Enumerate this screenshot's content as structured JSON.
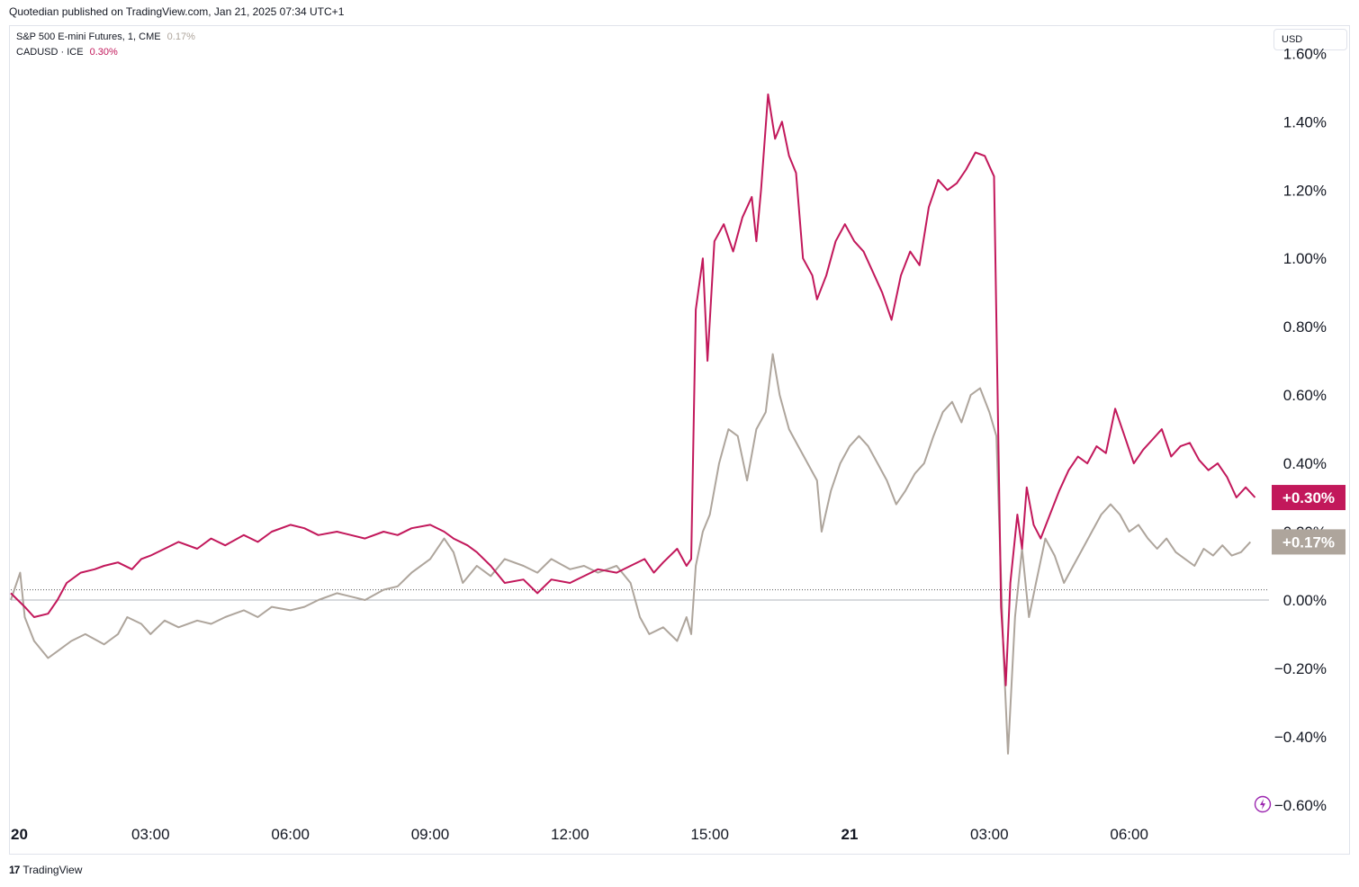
{
  "header": {
    "published": "Quotedian published on TradingView.com, Jan 21, 2025 07:34 UTC+1"
  },
  "legend": [
    {
      "name": "S&P 500 E-mini Futures, 1, CME",
      "pct": "0.17%",
      "color": "#aea59c"
    },
    {
      "name": "CADUSD · ICE",
      "pct": "0.30%",
      "color": "#c2185b"
    }
  ],
  "currency_button": "USD",
  "footer": {
    "brand": "TradingView"
  },
  "chart_data": {
    "type": "line",
    "ylim": [
      -0.64,
      1.68
    ],
    "y_ticks": [
      1.6,
      1.4,
      1.2,
      1.0,
      0.8,
      0.6,
      0.4,
      0.2,
      0.0,
      -0.2,
      -0.4,
      -0.6
    ],
    "y_tick_labels": [
      "1.60%",
      "1.40%",
      "1.20%",
      "1.00%",
      "0.80%",
      "0.60%",
      "0.40%",
      "0.20%",
      "0.00%",
      "−0.20%",
      "−0.40%",
      "−0.60%"
    ],
    "x_range": [
      0,
      27.0
    ],
    "x_ticks": [
      0,
      3,
      6,
      9,
      12,
      15,
      18,
      21,
      24,
      27
    ],
    "x_tick_labels": [
      "20",
      "03:00",
      "06:00",
      "09:00",
      "12:00",
      "15:00",
      "21",
      "03:00",
      "06:00",
      ""
    ],
    "x_tick_bold": [
      "20",
      "21"
    ],
    "grid": false,
    "zero_line": 0.0,
    "reference_line": 0.03,
    "series": [
      {
        "name": "CADUSD · ICE",
        "color": "#c2185b",
        "last_label": "+0.30%",
        "points": [
          [
            0.0,
            0.02
          ],
          [
            0.3,
            -0.02
          ],
          [
            0.5,
            -0.05
          ],
          [
            0.8,
            -0.04
          ],
          [
            1.0,
            0.0
          ],
          [
            1.2,
            0.05
          ],
          [
            1.5,
            0.08
          ],
          [
            1.8,
            0.09
          ],
          [
            2.0,
            0.1
          ],
          [
            2.3,
            0.11
          ],
          [
            2.6,
            0.09
          ],
          [
            2.8,
            0.12
          ],
          [
            3.0,
            0.13
          ],
          [
            3.3,
            0.15
          ],
          [
            3.6,
            0.17
          ],
          [
            4.0,
            0.15
          ],
          [
            4.3,
            0.18
          ],
          [
            4.6,
            0.16
          ],
          [
            5.0,
            0.19
          ],
          [
            5.3,
            0.17
          ],
          [
            5.6,
            0.2
          ],
          [
            6.0,
            0.22
          ],
          [
            6.3,
            0.21
          ],
          [
            6.6,
            0.19
          ],
          [
            7.0,
            0.2
          ],
          [
            7.3,
            0.19
          ],
          [
            7.6,
            0.18
          ],
          [
            8.0,
            0.2
          ],
          [
            8.3,
            0.19
          ],
          [
            8.6,
            0.21
          ],
          [
            9.0,
            0.22
          ],
          [
            9.3,
            0.2
          ],
          [
            9.5,
            0.18
          ],
          [
            9.8,
            0.16
          ],
          [
            10.0,
            0.14
          ],
          [
            10.3,
            0.1
          ],
          [
            10.6,
            0.05
          ],
          [
            11.0,
            0.06
          ],
          [
            11.3,
            0.02
          ],
          [
            11.6,
            0.06
          ],
          [
            12.0,
            0.05
          ],
          [
            12.3,
            0.07
          ],
          [
            12.6,
            0.09
          ],
          [
            13.0,
            0.08
          ],
          [
            13.3,
            0.1
          ],
          [
            13.6,
            0.12
          ],
          [
            13.8,
            0.08
          ],
          [
            14.0,
            0.11
          ],
          [
            14.3,
            0.15
          ],
          [
            14.5,
            0.1
          ],
          [
            14.6,
            0.12
          ],
          [
            14.7,
            0.85
          ],
          [
            14.85,
            1.0
          ],
          [
            14.95,
            0.7
          ],
          [
            15.1,
            1.05
          ],
          [
            15.3,
            1.1
          ],
          [
            15.5,
            1.02
          ],
          [
            15.7,
            1.12
          ],
          [
            15.9,
            1.18
          ],
          [
            16.0,
            1.05
          ],
          [
            16.1,
            1.2
          ],
          [
            16.25,
            1.48
          ],
          [
            16.4,
            1.35
          ],
          [
            16.55,
            1.4
          ],
          [
            16.7,
            1.3
          ],
          [
            16.85,
            1.25
          ],
          [
            17.0,
            1.0
          ],
          [
            17.2,
            0.95
          ],
          [
            17.3,
            0.88
          ],
          [
            17.5,
            0.95
          ],
          [
            17.7,
            1.05
          ],
          [
            17.9,
            1.1
          ],
          [
            18.1,
            1.05
          ],
          [
            18.3,
            1.02
          ],
          [
            18.5,
            0.96
          ],
          [
            18.7,
            0.9
          ],
          [
            18.9,
            0.82
          ],
          [
            19.1,
            0.95
          ],
          [
            19.3,
            1.02
          ],
          [
            19.5,
            0.98
          ],
          [
            19.7,
            1.15
          ],
          [
            19.9,
            1.23
          ],
          [
            20.1,
            1.2
          ],
          [
            20.3,
            1.22
          ],
          [
            20.5,
            1.26
          ],
          [
            20.7,
            1.31
          ],
          [
            20.9,
            1.3
          ],
          [
            21.0,
            1.27
          ],
          [
            21.1,
            1.24
          ],
          [
            21.25,
            -0.02
          ],
          [
            21.35,
            -0.25
          ],
          [
            21.45,
            0.05
          ],
          [
            21.6,
            0.25
          ],
          [
            21.7,
            0.15
          ],
          [
            21.8,
            0.33
          ],
          [
            21.95,
            0.22
          ],
          [
            22.1,
            0.18
          ],
          [
            22.3,
            0.25
          ],
          [
            22.5,
            0.32
          ],
          [
            22.7,
            0.38
          ],
          [
            22.9,
            0.42
          ],
          [
            23.1,
            0.4
          ],
          [
            23.3,
            0.45
          ],
          [
            23.5,
            0.43
          ],
          [
            23.7,
            0.56
          ],
          [
            23.9,
            0.48
          ],
          [
            24.1,
            0.4
          ],
          [
            24.3,
            0.44
          ],
          [
            24.5,
            0.47
          ],
          [
            24.7,
            0.5
          ],
          [
            24.9,
            0.42
          ],
          [
            25.1,
            0.45
          ],
          [
            25.3,
            0.46
          ],
          [
            25.5,
            0.41
          ],
          [
            25.7,
            0.38
          ],
          [
            25.9,
            0.4
          ],
          [
            26.1,
            0.36
          ],
          [
            26.3,
            0.3
          ],
          [
            26.5,
            0.33
          ],
          [
            26.7,
            0.3
          ]
        ]
      },
      {
        "name": "S&P 500 E-mini Futures, 1, CME",
        "color": "#aea59c",
        "last_label": "+0.17%",
        "points": [
          [
            0.0,
            0.0
          ],
          [
            0.2,
            0.08
          ],
          [
            0.3,
            -0.05
          ],
          [
            0.5,
            -0.12
          ],
          [
            0.8,
            -0.17
          ],
          [
            1.0,
            -0.15
          ],
          [
            1.3,
            -0.12
          ],
          [
            1.6,
            -0.1
          ],
          [
            2.0,
            -0.13
          ],
          [
            2.3,
            -0.1
          ],
          [
            2.5,
            -0.05
          ],
          [
            2.8,
            -0.07
          ],
          [
            3.0,
            -0.1
          ],
          [
            3.3,
            -0.06
          ],
          [
            3.6,
            -0.08
          ],
          [
            4.0,
            -0.06
          ],
          [
            4.3,
            -0.07
          ],
          [
            4.6,
            -0.05
          ],
          [
            5.0,
            -0.03
          ],
          [
            5.3,
            -0.05
          ],
          [
            5.6,
            -0.02
          ],
          [
            6.0,
            -0.03
          ],
          [
            6.3,
            -0.02
          ],
          [
            6.6,
            0.0
          ],
          [
            7.0,
            0.02
          ],
          [
            7.3,
            0.01
          ],
          [
            7.6,
            0.0
          ],
          [
            8.0,
            0.03
          ],
          [
            8.3,
            0.04
          ],
          [
            8.6,
            0.08
          ],
          [
            9.0,
            0.12
          ],
          [
            9.3,
            0.18
          ],
          [
            9.5,
            0.14
          ],
          [
            9.7,
            0.05
          ],
          [
            10.0,
            0.1
          ],
          [
            10.3,
            0.07
          ],
          [
            10.6,
            0.12
          ],
          [
            11.0,
            0.1
          ],
          [
            11.3,
            0.08
          ],
          [
            11.6,
            0.12
          ],
          [
            12.0,
            0.09
          ],
          [
            12.3,
            0.1
          ],
          [
            12.6,
            0.08
          ],
          [
            13.0,
            0.1
          ],
          [
            13.3,
            0.05
          ],
          [
            13.5,
            -0.05
          ],
          [
            13.7,
            -0.1
          ],
          [
            14.0,
            -0.08
          ],
          [
            14.3,
            -0.12
          ],
          [
            14.5,
            -0.05
          ],
          [
            14.6,
            -0.1
          ],
          [
            14.7,
            0.1
          ],
          [
            14.85,
            0.2
          ],
          [
            15.0,
            0.25
          ],
          [
            15.2,
            0.4
          ],
          [
            15.4,
            0.5
          ],
          [
            15.6,
            0.48
          ],
          [
            15.8,
            0.35
          ],
          [
            16.0,
            0.5
          ],
          [
            16.2,
            0.55
          ],
          [
            16.35,
            0.72
          ],
          [
            16.5,
            0.6
          ],
          [
            16.7,
            0.5
          ],
          [
            16.9,
            0.45
          ],
          [
            17.1,
            0.4
          ],
          [
            17.3,
            0.35
          ],
          [
            17.4,
            0.2
          ],
          [
            17.6,
            0.32
          ],
          [
            17.8,
            0.4
          ],
          [
            18.0,
            0.45
          ],
          [
            18.2,
            0.48
          ],
          [
            18.4,
            0.45
          ],
          [
            18.6,
            0.4
          ],
          [
            18.8,
            0.35
          ],
          [
            19.0,
            0.28
          ],
          [
            19.2,
            0.32
          ],
          [
            19.4,
            0.37
          ],
          [
            19.6,
            0.4
          ],
          [
            19.8,
            0.48
          ],
          [
            20.0,
            0.55
          ],
          [
            20.2,
            0.58
          ],
          [
            20.4,
            0.52
          ],
          [
            20.6,
            0.6
          ],
          [
            20.8,
            0.62
          ],
          [
            21.0,
            0.55
          ],
          [
            21.15,
            0.48
          ],
          [
            21.3,
            -0.15
          ],
          [
            21.4,
            -0.45
          ],
          [
            21.55,
            -0.05
          ],
          [
            21.7,
            0.15
          ],
          [
            21.85,
            -0.05
          ],
          [
            22.0,
            0.05
          ],
          [
            22.2,
            0.18
          ],
          [
            22.4,
            0.13
          ],
          [
            22.6,
            0.05
          ],
          [
            22.8,
            0.1
          ],
          [
            23.0,
            0.15
          ],
          [
            23.2,
            0.2
          ],
          [
            23.4,
            0.25
          ],
          [
            23.6,
            0.28
          ],
          [
            23.8,
            0.25
          ],
          [
            24.0,
            0.2
          ],
          [
            24.2,
            0.22
          ],
          [
            24.4,
            0.18
          ],
          [
            24.6,
            0.15
          ],
          [
            24.8,
            0.18
          ],
          [
            25.0,
            0.14
          ],
          [
            25.2,
            0.12
          ],
          [
            25.4,
            0.1
          ],
          [
            25.6,
            0.15
          ],
          [
            25.8,
            0.13
          ],
          [
            26.0,
            0.16
          ],
          [
            26.2,
            0.13
          ],
          [
            26.4,
            0.14
          ],
          [
            26.6,
            0.17
          ]
        ]
      }
    ]
  }
}
